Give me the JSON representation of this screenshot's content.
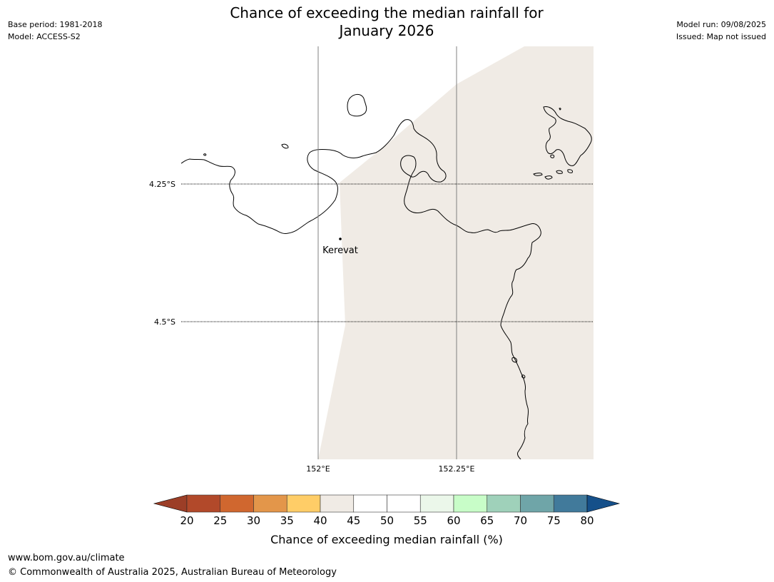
{
  "header": {
    "title_line1": "Chance of exceeding the median rainfall for",
    "title_line2": "January 2026",
    "base_period": "Base period: 1981-2018",
    "model": "Model: ACCESS-S2",
    "model_run": "Model run: 09/08/2025",
    "issued": "Issued: Map not issued"
  },
  "map": {
    "lat_labels": [
      "4.25°S",
      "4.5°S"
    ],
    "lon_labels": [
      "152°E",
      "152.25°E"
    ],
    "place": "Kerevat",
    "land_fill_color": "#f0ebe5"
  },
  "colorbar": {
    "ticks": [
      "20",
      "25",
      "30",
      "35",
      "40",
      "45",
      "50",
      "55",
      "60",
      "65",
      "70",
      "75",
      "80"
    ],
    "colors": [
      "#b2492a",
      "#d0672f",
      "#e3964a",
      "#ffcd67",
      "#f0ebe5",
      "#ffffff",
      "#ffffff",
      "#ebf7ea",
      "#c8fdc8",
      "#9fd1ba",
      "#6fa5a8",
      "#417a9b"
    ],
    "under_color": "#9c3e27",
    "over_color": "#15508a",
    "label": "Chance of exceeding median rainfall (%)"
  },
  "footer": {
    "url": "www.bom.gov.au/climate",
    "copyright": "© Commonwealth of Australia 2025, Australian Bureau of Meteorology"
  }
}
